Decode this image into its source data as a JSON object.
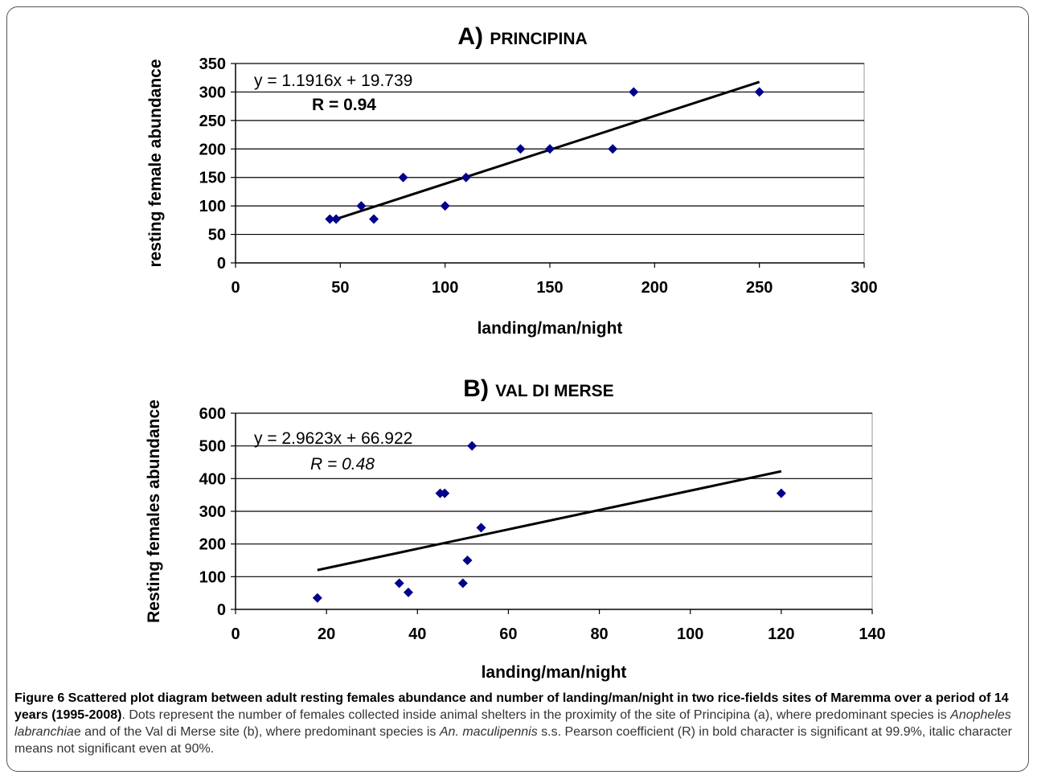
{
  "chart_data": [
    {
      "type": "scatter",
      "panel_letter": "A)",
      "title": "PRINCIPINA",
      "xlabel": "landing/man/night",
      "ylabel": "resting female abundance",
      "xlim": [
        0,
        300
      ],
      "ylim": [
        0,
        350
      ],
      "xticks": [
        0,
        50,
        100,
        150,
        200,
        250,
        300
      ],
      "yticks": [
        0,
        50,
        100,
        150,
        200,
        250,
        300,
        350
      ],
      "grid": "horizontal",
      "marker_color": "#00008B",
      "points": [
        {
          "x": 45,
          "y": 77
        },
        {
          "x": 48,
          "y": 77
        },
        {
          "x": 60,
          "y": 100
        },
        {
          "x": 66,
          "y": 77
        },
        {
          "x": 80,
          "y": 150
        },
        {
          "x": 100,
          "y": 100
        },
        {
          "x": 110,
          "y": 150
        },
        {
          "x": 136,
          "y": 200
        },
        {
          "x": 150,
          "y": 200
        },
        {
          "x": 180,
          "y": 200
        },
        {
          "x": 190,
          "y": 300
        },
        {
          "x": 250,
          "y": 300
        }
      ],
      "trendline": {
        "slope": 1.1916,
        "intercept": 19.739,
        "x_range": [
          48,
          250
        ]
      },
      "equation": "y = 1.1916x + 19.739",
      "r_label": "R = 0.94",
      "r_style": "bold"
    },
    {
      "type": "scatter",
      "panel_letter": "B)",
      "title": "VAL DI MERSE",
      "xlabel": "landing/man/night",
      "ylabel": "Resting females  abundance",
      "xlim": [
        0,
        140
      ],
      "ylim": [
        0,
        600
      ],
      "xticks": [
        0,
        20,
        40,
        60,
        80,
        100,
        120,
        140
      ],
      "yticks": [
        0,
        100,
        200,
        300,
        400,
        500,
        600
      ],
      "grid": "horizontal",
      "marker_color": "#00008B",
      "points": [
        {
          "x": 18,
          "y": 35
        },
        {
          "x": 36,
          "y": 80
        },
        {
          "x": 38,
          "y": 52
        },
        {
          "x": 45,
          "y": 355
        },
        {
          "x": 46,
          "y": 355
        },
        {
          "x": 50,
          "y": 80
        },
        {
          "x": 51,
          "y": 150
        },
        {
          "x": 52,
          "y": 500
        },
        {
          "x": 54,
          "y": 250
        },
        {
          "x": 120,
          "y": 355
        }
      ],
      "trendline": {
        "slope": 2.9623,
        "intercept": 66.922,
        "x_range": [
          18,
          120
        ]
      },
      "equation": "y = 2.9623x + 66.922",
      "r_label": "R = 0.48",
      "r_style": "italic"
    }
  ],
  "caption": {
    "bold": "Figure 6 Scattered plot diagram between adult resting females abundance and number of landing/man/night in two rice-fields sites of Maremma over a period of 14 years (1995-2008)",
    "part1": ". Dots represent the number of females collected inside animal shelters in the proximity of the site of Principina (a), where predominant species is ",
    "italic1": "Anopheles labranchia",
    "part2": "e and of the Val di Merse site (b), where predominant species is ",
    "italic2": "An. maculipennis",
    "part3": " s.s. Pearson coefficient (R) in bold character is significant at 99.9%, italic character means not significant even at 90%."
  }
}
